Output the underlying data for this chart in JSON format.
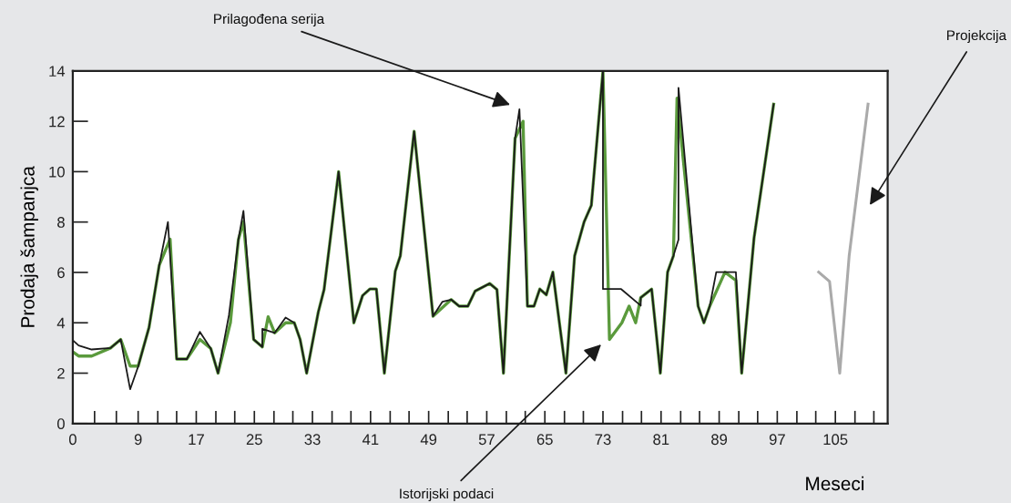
{
  "chart_data": {
    "type": "line",
    "ylabel": "Prodaja šampanjca",
    "xlabel": "Meseci",
    "xlim": [
      0,
      112.2
    ],
    "ylim": [
      0,
      14
    ],
    "xticks": [
      0,
      {
        "value": 3,
        "label": null
      },
      {
        "value": 6,
        "label": null
      },
      9,
      {
        "value": 11.7,
        "label": null
      },
      {
        "value": 14.3,
        "label": null
      },
      17,
      {
        "value": 19.7,
        "label": null
      },
      {
        "value": 22.3,
        "label": null
      },
      25,
      {
        "value": 27.7,
        "label": null
      },
      {
        "value": 30.3,
        "label": null
      },
      33,
      {
        "value": 35.7,
        "label": null
      },
      {
        "value": 38.3,
        "label": null
      },
      41,
      {
        "value": 43.7,
        "label": null
      },
      {
        "value": 46.3,
        "label": null
      },
      49,
      {
        "value": 51.7,
        "label": null
      },
      {
        "value": 54.3,
        "label": null
      },
      57,
      {
        "value": 59.7,
        "label": null
      },
      {
        "value": 62.3,
        "label": null
      },
      65,
      {
        "value": 67.7,
        "label": null
      },
      {
        "value": 70.3,
        "label": null
      },
      73,
      {
        "value": 75.7,
        "label": null
      },
      {
        "value": 78.3,
        "label": null
      },
      81,
      {
        "value": 83.7,
        "label": null
      },
      {
        "value": 86.3,
        "label": null
      },
      89,
      {
        "value": 91.7,
        "label": null
      },
      {
        "value": 94.3,
        "label": null
      },
      97,
      {
        "value": 99.7,
        "label": null
      },
      {
        "value": 102.3,
        "label": null
      },
      105,
      {
        "value": 107.7,
        "label": null
      },
      {
        "value": 110.3,
        "label": null
      }
    ],
    "yticks": [
      0,
      2,
      4,
      6,
      8,
      10,
      12,
      14
    ],
    "grid": false,
    "marker": "none",
    "line_style": "solid",
    "series": [
      {
        "color": "#5a9a3c",
        "x": [
          0,
          0.8,
          2.6,
          5.2,
          6.6,
          7.9,
          9.0,
          10.5,
          11.9,
          13.4,
          14.3,
          15.7,
          17.5,
          19.0,
          20.0,
          21.7,
          22.8,
          23.5,
          24.9,
          26.1,
          26.9,
          27.8,
          29.3,
          30.5,
          31.3,
          32.2,
          33.8,
          34.6,
          36.6,
          38.7,
          39.9,
          40.9,
          41.8,
          42.9,
          44.4,
          45.1,
          47.0,
          49.6,
          52.1,
          53.2,
          54.4,
          55.4,
          57.4,
          58.4,
          59.3,
          60.9,
          62.0,
          62.6,
          63.5,
          64.3,
          65.2,
          66.1,
          67.9,
          69.1,
          70.4,
          71.4,
          73.0,
          73.9,
          75.6,
          76.6,
          77.5,
          78.2,
          79.7,
          80.9,
          81.9,
          82.7,
          83.2,
          86.1,
          86.9,
          87.7,
          89.8,
          91.3,
          92.1,
          93.8,
          96.5
        ],
        "values": [
          2.85,
          2.68,
          2.68,
          3.0,
          3.34,
          2.28,
          2.28,
          3.82,
          6.28,
          7.32,
          2.56,
          2.56,
          3.34,
          2.98,
          2.0,
          4.0,
          7.3,
          8.02,
          3.34,
          3.04,
          4.24,
          3.6,
          4.0,
          4.0,
          3.34,
          2.0,
          4.42,
          5.32,
          10.0,
          4.0,
          5.08,
          5.34,
          5.34,
          2.0,
          6.04,
          6.66,
          11.6,
          4.26,
          4.92,
          4.66,
          4.66,
          5.26,
          5.56,
          5.32,
          2.0,
          11.32,
          12.0,
          4.66,
          4.66,
          5.34,
          5.11,
          6.01,
          2.0,
          6.66,
          8.0,
          8.66,
          14.0,
          3.34,
          4.0,
          4.66,
          4.0,
          5.0,
          5.34,
          2.0,
          6.01,
          6.66,
          12.92,
          4.66,
          4.0,
          4.66,
          6.01,
          5.68,
          2.0,
          7.36,
          12.68
        ]
      },
      {
        "color": "#1a1a1a",
        "x": [
          0,
          0.8,
          2.6,
          5.2,
          6.6,
          7.9,
          9.0,
          10.5,
          11.9,
          13.1,
          14.3,
          15.7,
          17.5,
          19.0,
          20.0,
          21.5,
          22.8,
          23.5,
          24.9,
          26.1,
          26.1,
          27.8,
          29.3,
          30.5,
          31.3,
          32.2,
          33.8,
          34.6,
          36.6,
          38.7,
          39.9,
          40.9,
          41.8,
          42.9,
          44.4,
          45.1,
          47.0,
          49.6,
          50.9,
          52.1,
          53.2,
          54.4,
          55.4,
          57.4,
          58.4,
          59.3,
          60.9,
          61.5,
          62.6,
          63.5,
          64.3,
          65.2,
          66.1,
          67.9,
          69.1,
          70.4,
          71.4,
          73.0,
          73.0,
          75.5,
          78.2,
          78.2,
          79.7,
          80.9,
          81.9,
          82.7,
          83.4,
          83.4,
          86.1,
          86.9,
          87.7,
          88.6,
          91.3,
          92.1,
          93.8,
          96.5
        ],
        "values": [
          3.31,
          3.1,
          2.94,
          3.0,
          3.34,
          1.36,
          2.26,
          3.82,
          6.28,
          8.0,
          2.56,
          2.56,
          3.64,
          2.98,
          2.0,
          4.3,
          7.3,
          8.44,
          3.34,
          3.04,
          3.76,
          3.6,
          4.21,
          4.0,
          3.34,
          2.0,
          4.42,
          5.32,
          10.0,
          4.0,
          5.08,
          5.34,
          5.34,
          2.0,
          6.04,
          6.66,
          11.6,
          4.26,
          4.84,
          4.92,
          4.66,
          4.66,
          5.26,
          5.56,
          5.32,
          2.0,
          11.32,
          12.48,
          4.66,
          4.66,
          5.34,
          5.11,
          6.01,
          2.0,
          6.66,
          8.0,
          8.66,
          14.0,
          5.34,
          5.34,
          4.68,
          5.0,
          5.34,
          2.0,
          6.01,
          6.66,
          7.3,
          13.33,
          4.66,
          4.0,
          4.66,
          6.01,
          6.01,
          2.0,
          7.36,
          12.68
        ]
      },
      {
        "color": "#aaaaaa",
        "x": [
          102.7,
          104.2,
          105.6,
          106.9,
          109.5
        ],
        "values": [
          6.01,
          5.64,
          2.0,
          6.66,
          12.68
        ]
      }
    ],
    "annotations": [
      "Prilagođena serija",
      "Istorijski podaci",
      "Projekcija"
    ]
  }
}
